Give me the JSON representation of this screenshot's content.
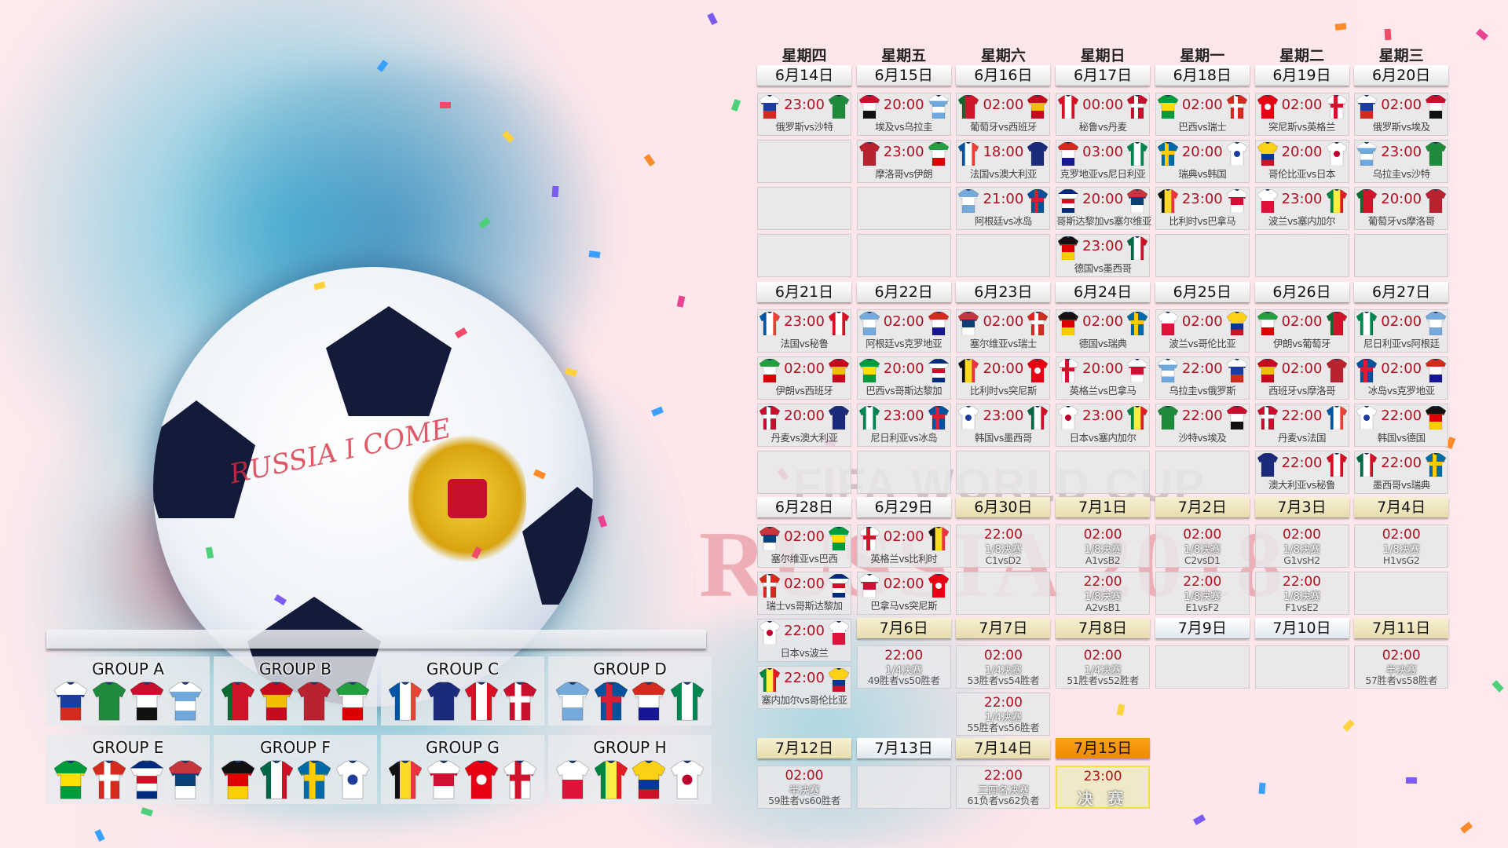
{
  "background": {
    "base_color": "#fde7ea",
    "accent_blue": "#35b6d6",
    "watermark_top": "FIFA WORLD CUP",
    "watermark_main": "RUSSIA 2018",
    "ball_text": "RUSSIA I COME"
  },
  "colors": {
    "time": "#b0101f",
    "knockout_header": "#efe6c0",
    "final_header": "#f39c12",
    "final_border": "#f0e23a"
  },
  "kits": {
    "RUS": {
      "p": "h",
      "c": [
        "#ffffff",
        "#1d3c9c",
        "#d52b1e"
      ]
    },
    "KSA": {
      "p": "h",
      "c": [
        "#1f8a3c"
      ]
    },
    "EGY": {
      "p": "h",
      "c": [
        "#c8102e",
        "#ffffff",
        "#111111"
      ]
    },
    "URU": {
      "p": "h",
      "c": [
        "#ffffff",
        "#6fa8dc",
        "#ffffff",
        "#6fa8dc"
      ]
    },
    "POR": {
      "p": "v",
      "c": [
        "#0a6b2e",
        "#d0152a",
        "#d0152a"
      ]
    },
    "ESP": {
      "p": "h",
      "c": [
        "#c60b1e",
        "#f1bf00",
        "#c60b1e"
      ]
    },
    "MAR": {
      "p": "h",
      "c": [
        "#b8232f"
      ]
    },
    "IRN": {
      "p": "h",
      "c": [
        "#239f40",
        "#ffffff",
        "#da0000"
      ]
    },
    "FRA": {
      "p": "v",
      "c": [
        "#0055a4",
        "#ffffff",
        "#ef4135"
      ]
    },
    "AUS": {
      "p": "h",
      "c": [
        "#1b2a7a"
      ]
    },
    "PER": {
      "p": "v",
      "c": [
        "#d91023",
        "#ffffff",
        "#d91023"
      ]
    },
    "DEN": {
      "p": "cross",
      "c": [
        "#c8102e",
        "#ffffff"
      ]
    },
    "ARG": {
      "p": "h",
      "c": [
        "#75aadb",
        "#ffffff",
        "#75aadb"
      ]
    },
    "ISL": {
      "p": "cross",
      "c": [
        "#02529c",
        "#dc1e35"
      ]
    },
    "CRO": {
      "p": "h",
      "c": [
        "#d52b1e",
        "#ffffff",
        "#171796"
      ]
    },
    "NGA": {
      "p": "v",
      "c": [
        "#008751",
        "#ffffff",
        "#008751"
      ]
    },
    "BRA": {
      "p": "h",
      "c": [
        "#009c3b",
        "#fedf00",
        "#009c3b"
      ]
    },
    "SUI": {
      "p": "cross",
      "c": [
        "#d52b1e",
        "#ffffff"
      ]
    },
    "CRC": {
      "p": "h",
      "c": [
        "#002b7f",
        "#ffffff",
        "#ce1126",
        "#ffffff",
        "#002b7f"
      ]
    },
    "SRB": {
      "p": "h",
      "c": [
        "#c6363c",
        "#0c4076",
        "#ffffff"
      ]
    },
    "GER": {
      "p": "h",
      "c": [
        "#111111",
        "#dd0000",
        "#ffce00"
      ]
    },
    "MEX": {
      "p": "v",
      "c": [
        "#006847",
        "#ffffff",
        "#ce1126"
      ]
    },
    "SWE": {
      "p": "cross",
      "c": [
        "#006aa7",
        "#fecc00"
      ]
    },
    "KOR": {
      "p": "dot",
      "c": [
        "#ffffff",
        "#1d3c9c"
      ]
    },
    "BEL": {
      "p": "v",
      "c": [
        "#111111",
        "#fdda24",
        "#ef3340"
      ]
    },
    "PAN": {
      "p": "h",
      "c": [
        "#ffffff",
        "#d21034",
        "#ffffff"
      ]
    },
    "TUN": {
      "p": "dot",
      "c": [
        "#e70013",
        "#ffffff"
      ]
    },
    "ENG": {
      "p": "cross",
      "c": [
        "#ffffff",
        "#cf142b"
      ]
    },
    "POL": {
      "p": "h",
      "c": [
        "#ffffff",
        "#dc143c"
      ]
    },
    "SEN": {
      "p": "v",
      "c": [
        "#00853f",
        "#fdef42",
        "#e31b23"
      ]
    },
    "COL": {
      "p": "h",
      "c": [
        "#fcd116",
        "#fcd116",
        "#003893",
        "#ce1126"
      ]
    },
    "JPN": {
      "p": "dot",
      "c": [
        "#ffffff",
        "#bc002d"
      ]
    }
  },
  "schedule": {
    "weekdays": [
      "星期四",
      "星期五",
      "星期六",
      "星期日",
      "星期一",
      "星期二",
      "星期三"
    ],
    "days": [
      {
        "date": "6月14日",
        "style": "group",
        "matches": [
          {
            "time": "23:00",
            "home": "RUS",
            "away": "KSA",
            "label": "俄罗斯vs沙特"
          }
        ]
      },
      {
        "date": "6月15日",
        "style": "group",
        "matches": [
          {
            "time": "20:00",
            "home": "EGY",
            "away": "URU",
            "label": "埃及vs乌拉圭"
          },
          {
            "time": "23:00",
            "home": "MAR",
            "away": "IRN",
            "label": "摩洛哥vs伊朗"
          }
        ]
      },
      {
        "date": "6月16日",
        "style": "group",
        "matches": [
          {
            "time": "02:00",
            "home": "POR",
            "away": "ESP",
            "label": "葡萄牙vs西班牙"
          },
          {
            "time": "18:00",
            "home": "FRA",
            "away": "AUS",
            "label": "法国vs澳大利亚"
          },
          {
            "time": "21:00",
            "home": "ARG",
            "away": "ISL",
            "label": "阿根廷vs冰岛"
          }
        ]
      },
      {
        "date": "6月17日",
        "style": "group",
        "matches": [
          {
            "time": "00:00",
            "home": "PER",
            "away": "DEN",
            "label": "秘鲁vs丹麦"
          },
          {
            "time": "03:00",
            "home": "CRO",
            "away": "NGA",
            "label": "克罗地亚vs尼日利亚"
          },
          {
            "time": "20:00",
            "home": "CRC",
            "away": "SRB",
            "label": "哥斯达黎加vs塞尔维亚"
          },
          {
            "time": "23:00",
            "home": "GER",
            "away": "MEX",
            "label": "德国vs墨西哥"
          }
        ]
      },
      {
        "date": "6月18日",
        "style": "group",
        "matches": [
          {
            "time": "02:00",
            "home": "BRA",
            "away": "SUI",
            "label": "巴西vs瑞士"
          },
          {
            "time": "20:00",
            "home": "SWE",
            "away": "KOR",
            "label": "瑞典vs韩国"
          },
          {
            "time": "23:00",
            "home": "BEL",
            "away": "PAN",
            "label": "比利时vs巴拿马"
          }
        ]
      },
      {
        "date": "6月19日",
        "style": "group",
        "matches": [
          {
            "time": "02:00",
            "home": "TUN",
            "away": "ENG",
            "label": "突尼斯vs英格兰"
          },
          {
            "time": "20:00",
            "home": "COL",
            "away": "JPN",
            "label": "哥伦比亚vs日本"
          },
          {
            "time": "23:00",
            "home": "POL",
            "away": "SEN",
            "label": "波兰vs塞内加尔"
          }
        ]
      },
      {
        "date": "6月20日",
        "style": "group",
        "matches": [
          {
            "time": "02:00",
            "home": "RUS",
            "away": "EGY",
            "label": "俄罗斯vs埃及"
          },
          {
            "time": "23:00",
            "home": "URU",
            "away": "KSA",
            "label": "乌拉圭vs沙特"
          },
          {
            "time": "20:00",
            "home": "POR",
            "away": "MAR",
            "label": "葡萄牙vs摩洛哥"
          }
        ]
      },
      {
        "date": "6月21日",
        "style": "group",
        "matches": [
          {
            "time": "23:00",
            "home": "FRA",
            "away": "PER",
            "label": "法国vs秘鲁"
          },
          {
            "time": "02:00",
            "home": "IRN",
            "away": "ESP",
            "label": "伊朗vs西班牙"
          },
          {
            "time": "20:00",
            "home": "DEN",
            "away": "AUS",
            "label": "丹麦vs澳大利亚"
          }
        ]
      },
      {
        "date": "6月22日",
        "style": "group",
        "matches": [
          {
            "time": "02:00",
            "home": "ARG",
            "away": "CRO",
            "label": "阿根廷vs克罗地亚"
          },
          {
            "time": "20:00",
            "home": "BRA",
            "away": "CRC",
            "label": "巴西vs哥斯达黎加"
          },
          {
            "time": "23:00",
            "home": "NGA",
            "away": "ISL",
            "label": "尼日利亚vs冰岛"
          }
        ]
      },
      {
        "date": "6月23日",
        "style": "group",
        "matches": [
          {
            "time": "02:00",
            "home": "SRB",
            "away": "SUI",
            "label": "塞尔维亚vs瑞士"
          },
          {
            "time": "20:00",
            "home": "BEL",
            "away": "TUN",
            "label": "比利时vs突尼斯"
          },
          {
            "time": "23:00",
            "home": "KOR",
            "away": "MEX",
            "label": "韩国vs墨西哥"
          }
        ]
      },
      {
        "date": "6月24日",
        "style": "group",
        "matches": [
          {
            "time": "02:00",
            "home": "GER",
            "away": "SWE",
            "label": "德国vs瑞典"
          },
          {
            "time": "20:00",
            "home": "ENG",
            "away": "PAN",
            "label": "英格兰vs巴拿马"
          },
          {
            "time": "23:00",
            "home": "JPN",
            "away": "SEN",
            "label": "日本vs塞内加尔"
          }
        ]
      },
      {
        "date": "6月25日",
        "style": "group",
        "matches": [
          {
            "time": "02:00",
            "home": "POL",
            "away": "COL",
            "label": "波兰vs哥伦比亚"
          },
          {
            "time": "22:00",
            "home": "URU",
            "away": "RUS",
            "label": "乌拉圭vs俄罗斯"
          },
          {
            "time": "22:00",
            "home": "KSA",
            "away": "EGY",
            "label": "沙特vs埃及"
          }
        ]
      },
      {
        "date": "6月26日",
        "style": "group",
        "matches": [
          {
            "time": "02:00",
            "home": "IRN",
            "away": "POR",
            "label": "伊朗vs葡萄牙"
          },
          {
            "time": "02:00",
            "home": "ESP",
            "away": "MAR",
            "label": "西班牙vs摩洛哥"
          },
          {
            "time": "22:00",
            "home": "DEN",
            "away": "FRA",
            "label": "丹麦vs法国"
          },
          {
            "time": "22:00",
            "home": "AUS",
            "away": "PER",
            "label": "澳大利亚vs秘鲁"
          }
        ]
      },
      {
        "date": "6月27日",
        "style": "group",
        "matches": [
          {
            "time": "02:00",
            "home": "NGA",
            "away": "ARG",
            "label": "尼日利亚vs阿根廷"
          },
          {
            "time": "02:00",
            "home": "ISL",
            "away": "CRO",
            "label": "冰岛vs克罗地亚"
          },
          {
            "time": "22:00",
            "home": "KOR",
            "away": "GER",
            "label": "韩国vs德国"
          },
          {
            "time": "22:00",
            "home": "MEX",
            "away": "SWE",
            "label": "墨西哥vs瑞典"
          }
        ]
      },
      {
        "date": "6月28日",
        "style": "group",
        "matches": [
          {
            "time": "02:00",
            "home": "SRB",
            "away": "BRA",
            "label": "塞尔维亚vs巴西"
          },
          {
            "time": "02:00",
            "home": "SUI",
            "away": "CRC",
            "label": "瑞士vs哥斯达黎加"
          },
          {
            "time": "22:00",
            "home": "JPN",
            "away": "POL",
            "label": "日本vs波兰"
          },
          {
            "time": "22:00",
            "home": "SEN",
            "away": "COL",
            "label": "塞内加尔vs哥伦比亚"
          }
        ]
      },
      {
        "date": "6月29日",
        "style": "group",
        "matches": [
          {
            "time": "02:00",
            "home": "ENG",
            "away": "BEL",
            "label": "英格兰vs比利时"
          },
          {
            "time": "02:00",
            "home": "PAN",
            "away": "TUN",
            "label": "巴拿马vs突尼斯"
          }
        ]
      },
      {
        "date": "6月30日",
        "style": "knockout",
        "matches": [
          {
            "time": "22:00",
            "stage": "1/8决赛",
            "teams": "C1vsD2"
          }
        ]
      },
      {
        "date": "7月1日",
        "style": "knockout",
        "matches": [
          {
            "time": "02:00",
            "stage": "1/8决赛",
            "teams": "A1vsB2"
          },
          {
            "time": "22:00",
            "stage": "1/8决赛",
            "teams": "A2vsB1"
          }
        ]
      },
      {
        "date": "7月2日",
        "style": "knockout",
        "matches": [
          {
            "time": "02:00",
            "stage": "1/8决赛",
            "teams": "C2vsD1"
          },
          {
            "time": "22:00",
            "stage": "1/8决赛",
            "teams": "E1vsF2"
          }
        ]
      },
      {
        "date": "7月3日",
        "style": "knockout",
        "matches": [
          {
            "time": "02:00",
            "stage": "1/8决赛",
            "teams": "G1vsH2"
          },
          {
            "time": "22:00",
            "stage": "1/8决赛",
            "teams": "F1vsE2"
          }
        ]
      },
      {
        "date": "7月4日",
        "style": "knockout",
        "matches": [
          {
            "time": "02:00",
            "stage": "1/8决赛",
            "teams": "H1vsG2"
          }
        ]
      },
      {
        "date": "7月6日",
        "style": "knockout",
        "matches": [
          {
            "time": "22:00",
            "stage": "1/4决赛",
            "teams": "49胜者vs50胜者"
          }
        ]
      },
      {
        "date": "7月7日",
        "style": "knockout",
        "matches": [
          {
            "time": "02:00",
            "stage": "1/4决赛",
            "teams": "53胜者vs54胜者"
          },
          {
            "time": "22:00",
            "stage": "1/4决赛",
            "teams": "55胜者vs56胜者"
          }
        ]
      },
      {
        "date": "7月8日",
        "style": "knockout",
        "matches": [
          {
            "time": "02:00",
            "stage": "1/4决赛",
            "teams": "51胜者vs52胜者"
          }
        ]
      },
      {
        "date": "7月9日",
        "style": "plain",
        "matches": []
      },
      {
        "date": "7月10日",
        "style": "plain",
        "matches": []
      },
      {
        "date": "7月11日",
        "style": "knockout",
        "matches": [
          {
            "time": "02:00",
            "stage": "半决赛",
            "teams": "57胜者vs58胜者"
          }
        ]
      },
      {
        "date": "7月12日",
        "style": "knockout",
        "matches": [
          {
            "time": "02:00",
            "stage": "半决赛",
            "teams": "59胜者vs60胜者"
          }
        ]
      },
      {
        "date": "7月13日",
        "style": "plain",
        "matches": []
      },
      {
        "date": "7月14日",
        "style": "knockout",
        "matches": [
          {
            "time": "22:00",
            "stage": "三四名决赛",
            "teams": "61负者vs62负者"
          }
        ]
      },
      {
        "date": "7月15日",
        "style": "final",
        "matches": [
          {
            "time": "23:00",
            "final": "决 赛"
          }
        ]
      }
    ]
  },
  "groups": [
    {
      "name": "GROUP A",
      "teams": [
        "RUS",
        "KSA",
        "EGY",
        "URU"
      ]
    },
    {
      "name": "GROUP B",
      "teams": [
        "POR",
        "ESP",
        "MAR",
        "IRN"
      ]
    },
    {
      "name": "GROUP C",
      "teams": [
        "FRA",
        "AUS",
        "PER",
        "DEN"
      ]
    },
    {
      "name": "GROUP D",
      "teams": [
        "ARG",
        "ISL",
        "CRO",
        "NGA"
      ]
    },
    {
      "name": "GROUP E",
      "teams": [
        "BRA",
        "SUI",
        "CRC",
        "SRB"
      ]
    },
    {
      "name": "GROUP F",
      "teams": [
        "GER",
        "MEX",
        "SWE",
        "KOR"
      ]
    },
    {
      "name": "GROUP G",
      "teams": [
        "BEL",
        "PAN",
        "TUN",
        "ENG"
      ]
    },
    {
      "name": "GROUP H",
      "teams": [
        "POL",
        "SEN",
        "COL",
        "JPN"
      ]
    }
  ]
}
